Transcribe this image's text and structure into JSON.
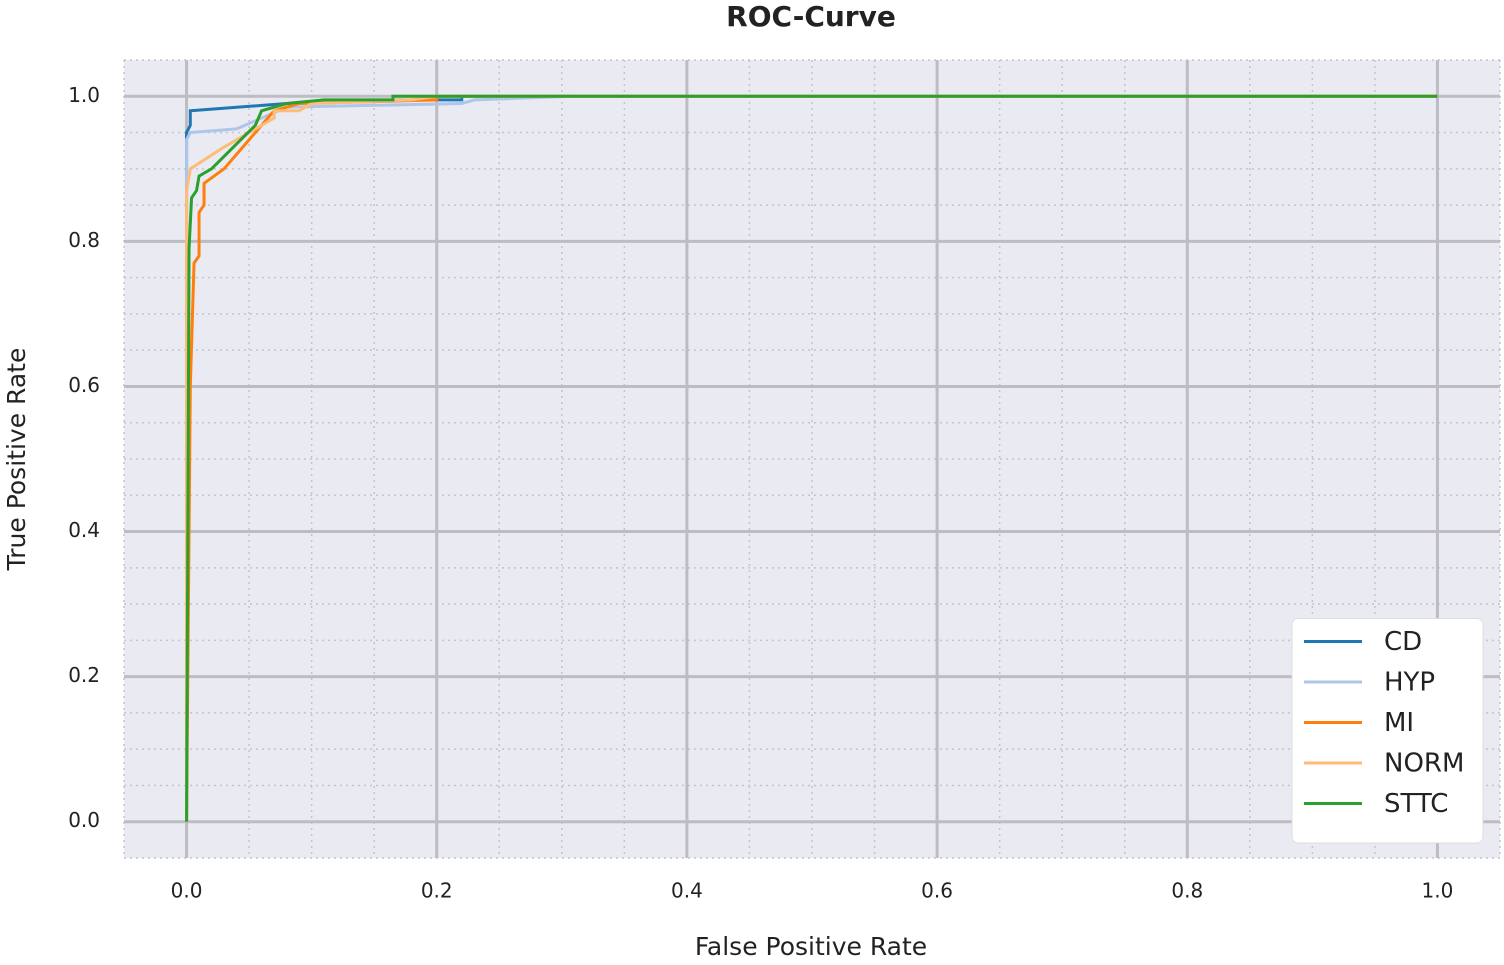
{
  "chart_data": {
    "type": "line",
    "title": "ROC-Curve",
    "xlabel": "False Positive Rate",
    "ylabel": "True Positive Rate",
    "xlim": [
      -0.05,
      1.05
    ],
    "ylim": [
      -0.05,
      1.05
    ],
    "xticks": [
      {
        "value": 0,
        "label": "0.0"
      },
      0.2,
      0.4,
      0.6,
      0.8,
      {
        "value": 1,
        "label": "1.0"
      }
    ],
    "yticks": [
      {
        "value": 0,
        "label": "0.0"
      },
      0.2,
      0.4,
      0.6,
      0.8,
      {
        "value": 1,
        "label": "1.0"
      }
    ],
    "grid": true,
    "minor_grid": true,
    "legend": "lower right",
    "series": [
      {
        "name": "CD",
        "color": "#1f77b4",
        "x": [
          0,
          0,
          0.003,
          0.003,
          0.08,
          0.18,
          0.22,
          0.22,
          1
        ],
        "values": [
          0,
          0.95,
          0.96,
          0.98,
          0.99,
          0.995,
          0.995,
          1,
          1
        ]
      },
      {
        "name": "HYP",
        "color": "#aec7e8",
        "x": [
          0,
          0,
          0.003,
          0.04,
          0.08,
          0.22,
          0.23,
          0.31,
          1
        ],
        "values": [
          0,
          0.94,
          0.95,
          0.955,
          0.985,
          0.99,
          0.995,
          1,
          1
        ]
      },
      {
        "name": "MI",
        "color": "#ff7f0e",
        "x": [
          0,
          0.003,
          0.006,
          0.01,
          0.01,
          0.014,
          0.014,
          0.03,
          0.065,
          0.07,
          0.09,
          0.2,
          0.2,
          1
        ],
        "values": [
          0,
          0.6,
          0.77,
          0.78,
          0.84,
          0.85,
          0.88,
          0.9,
          0.97,
          0.98,
          0.99,
          0.995,
          1,
          1
        ]
      },
      {
        "name": "NORM",
        "color": "#ffbb78",
        "x": [
          0,
          0,
          0.003,
          0.03,
          0.07,
          0.07,
          0.09,
          0.1,
          0.18,
          0.2,
          1
        ],
        "values": [
          0,
          0.87,
          0.9,
          0.93,
          0.97,
          0.98,
          0.98,
          0.99,
          0.995,
          1,
          1
        ]
      },
      {
        "name": "STTC",
        "color": "#2ca02c",
        "x": [
          0,
          0.002,
          0.004,
          0.008,
          0.01,
          0.02,
          0.055,
          0.06,
          0.08,
          0.11,
          0.165,
          0.165,
          1
        ],
        "values": [
          0,
          0.79,
          0.86,
          0.87,
          0.89,
          0.9,
          0.96,
          0.98,
          0.99,
          0.995,
          0.995,
          1,
          1
        ]
      }
    ]
  }
}
